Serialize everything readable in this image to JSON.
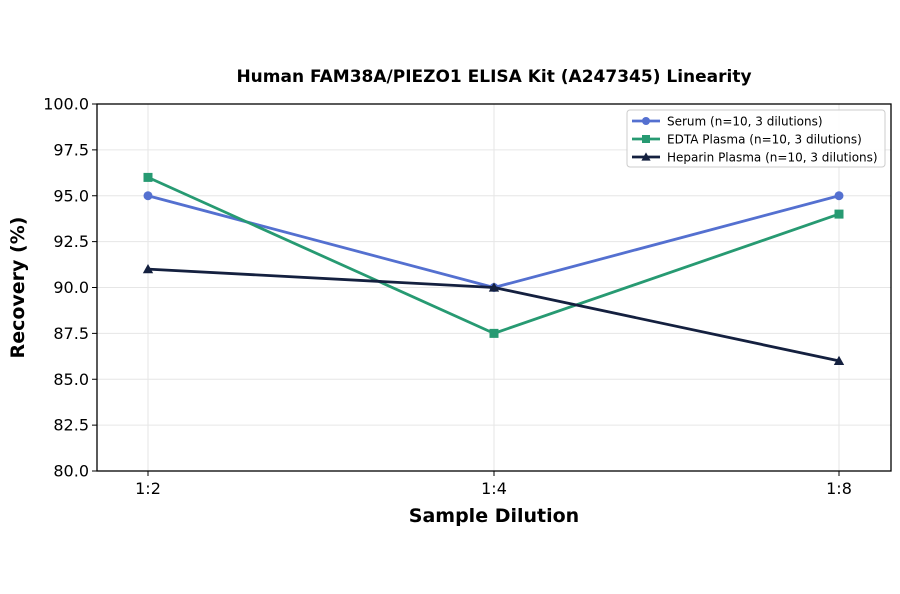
{
  "chart_data": {
    "type": "line",
    "title": "Human FAM38A/PIEZO1 ELISA Kit (A247345) Linearity",
    "xlabel": "Sample Dilution",
    "ylabel": "Recovery (%)",
    "categories": [
      "1:2",
      "1:4",
      "1:8"
    ],
    "ylim": [
      80.0,
      100.0
    ],
    "yticks": [
      "80.0",
      "82.5",
      "85.0",
      "87.5",
      "90.0",
      "92.5",
      "95.0",
      "97.5",
      "100.0"
    ],
    "ytick_values": [
      80.0,
      82.5,
      85.0,
      87.5,
      90.0,
      92.5,
      95.0,
      97.5,
      100.0
    ],
    "grid": true,
    "legend_position": "top-right",
    "series": [
      {
        "name": "Serum (n=10, 3 dilutions)",
        "values": [
          95.0,
          90.0,
          95.0
        ],
        "color": "#5470d0",
        "marker": "circle"
      },
      {
        "name": "EDTA Plasma (n=10, 3 dilutions)",
        "values": [
          96.0,
          87.5,
          94.0
        ],
        "color": "#279a72",
        "marker": "square"
      },
      {
        "name": "Heparin Plasma (n=10, 3 dilutions)",
        "values": [
          91.0,
          90.0,
          86.0
        ],
        "color": "#14203f",
        "marker": "triangle"
      }
    ]
  }
}
